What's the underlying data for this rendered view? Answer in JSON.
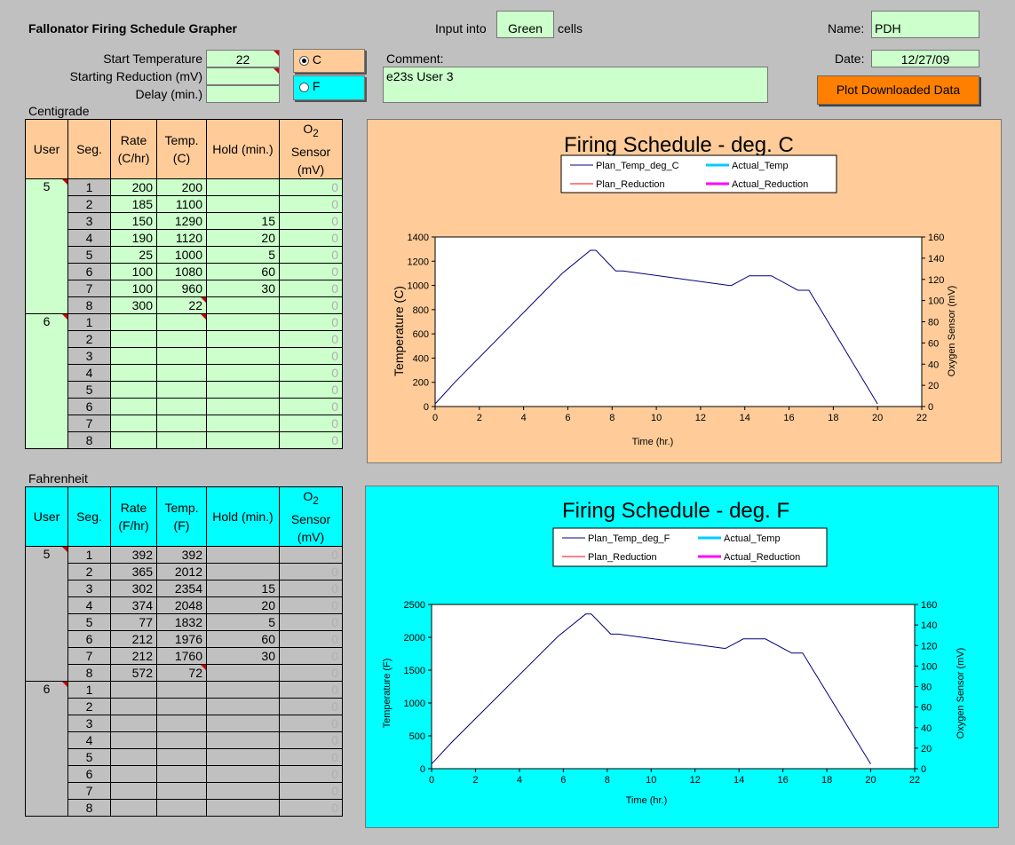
{
  "header": {
    "app_title": "Fallonator Firing Schedule Grapher",
    "input_into": "Input into",
    "green_word": "Green",
    "cells_word": "cells",
    "name_label": "Name:",
    "name_value": "PDH",
    "date_label": "Date:",
    "date_value": "12/27/09"
  },
  "inputs": {
    "start_temp_label": "Start Temperature",
    "start_temp_value": "22",
    "start_red_label": "Starting Reduction (mV)",
    "start_red_value": "",
    "delay_label": "Delay (min.)",
    "delay_value": "",
    "comment_label": "Comment:",
    "comment_value": "e23s User 3",
    "unit_c_label": "C",
    "unit_f_label": "F",
    "selected_unit": "C",
    "plot_button": "Plot Downloaded Data"
  },
  "centigrade": {
    "section_label": "Centigrade",
    "headers": {
      "user": "User",
      "seg": "Seg.",
      "rate": "Rate (C/hr)",
      "temp": "Temp. (C)",
      "hold": "Hold (min.)",
      "o2_main": "O",
      "o2_sub": "2",
      "o2_rest": "Sensor (mV)"
    },
    "groups": [
      {
        "user": "5",
        "rows": [
          {
            "seg": "1",
            "rate": "200",
            "temp": "200",
            "hold": "",
            "o2": "0"
          },
          {
            "seg": "2",
            "rate": "185",
            "temp": "1100",
            "hold": "",
            "o2": "0"
          },
          {
            "seg": "3",
            "rate": "150",
            "temp": "1290",
            "hold": "15",
            "o2": "0"
          },
          {
            "seg": "4",
            "rate": "190",
            "temp": "1120",
            "hold": "20",
            "o2": "0"
          },
          {
            "seg": "5",
            "rate": "25",
            "temp": "1000",
            "hold": "5",
            "o2": "0"
          },
          {
            "seg": "6",
            "rate": "100",
            "temp": "1080",
            "hold": "60",
            "o2": "0"
          },
          {
            "seg": "7",
            "rate": "100",
            "temp": "960",
            "hold": "30",
            "o2": "0"
          },
          {
            "seg": "8",
            "rate": "300",
            "temp": "22",
            "hold": "",
            "o2": "0"
          }
        ]
      },
      {
        "user": "6",
        "rows": [
          {
            "seg": "1",
            "rate": "",
            "temp": "",
            "hold": "",
            "o2": "0"
          },
          {
            "seg": "2",
            "rate": "",
            "temp": "",
            "hold": "",
            "o2": "0"
          },
          {
            "seg": "3",
            "rate": "",
            "temp": "",
            "hold": "",
            "o2": "0"
          },
          {
            "seg": "4",
            "rate": "",
            "temp": "",
            "hold": "",
            "o2": "0"
          },
          {
            "seg": "5",
            "rate": "",
            "temp": "",
            "hold": "",
            "o2": "0"
          },
          {
            "seg": "6",
            "rate": "",
            "temp": "",
            "hold": "",
            "o2": "0"
          },
          {
            "seg": "7",
            "rate": "",
            "temp": "",
            "hold": "",
            "o2": "0"
          },
          {
            "seg": "8",
            "rate": "",
            "temp": "",
            "hold": "",
            "o2": "0"
          }
        ]
      }
    ]
  },
  "fahrenheit": {
    "section_label": "Fahrenheit",
    "headers": {
      "user": "User",
      "seg": "Seg.",
      "rate": "Rate (F/hr)",
      "temp": "Temp. (F)",
      "hold": "Hold (min.)",
      "o2_main": "O",
      "o2_sub": "2",
      "o2_rest": "Sensor (mV)"
    },
    "groups": [
      {
        "user": "5",
        "rows": [
          {
            "seg": "1",
            "rate": "392",
            "temp": "392",
            "hold": "",
            "o2": "0"
          },
          {
            "seg": "2",
            "rate": "365",
            "temp": "2012",
            "hold": "",
            "o2": "0"
          },
          {
            "seg": "3",
            "rate": "302",
            "temp": "2354",
            "hold": "15",
            "o2": "0"
          },
          {
            "seg": "4",
            "rate": "374",
            "temp": "2048",
            "hold": "20",
            "o2": "0"
          },
          {
            "seg": "5",
            "rate": "77",
            "temp": "1832",
            "hold": "5",
            "o2": "0"
          },
          {
            "seg": "6",
            "rate": "212",
            "temp": "1976",
            "hold": "60",
            "o2": "0"
          },
          {
            "seg": "7",
            "rate": "212",
            "temp": "1760",
            "hold": "30",
            "o2": "0"
          },
          {
            "seg": "8",
            "rate": "572",
            "temp": "72",
            "hold": "",
            "o2": "0"
          }
        ]
      },
      {
        "user": "6",
        "rows": [
          {
            "seg": "1",
            "rate": "",
            "temp": "",
            "hold": "",
            "o2": "0"
          },
          {
            "seg": "2",
            "rate": "",
            "temp": "",
            "hold": "",
            "o2": "0"
          },
          {
            "seg": "3",
            "rate": "",
            "temp": "",
            "hold": "",
            "o2": "0"
          },
          {
            "seg": "4",
            "rate": "",
            "temp": "",
            "hold": "",
            "o2": "0"
          },
          {
            "seg": "5",
            "rate": "",
            "temp": "",
            "hold": "",
            "o2": "0"
          },
          {
            "seg": "6",
            "rate": "",
            "temp": "",
            "hold": "",
            "o2": "0"
          },
          {
            "seg": "7",
            "rate": "",
            "temp": "",
            "hold": "",
            "o2": "0"
          },
          {
            "seg": "8",
            "rate": "",
            "temp": "",
            "hold": "",
            "o2": "0"
          }
        ]
      }
    ]
  },
  "colors": {
    "background": "#c0c0c0",
    "input_green": "#ccffcc",
    "celsius_panel": "#ffcc99",
    "fahrenheit_panel": "#00ffff",
    "button_orange": "#ff8000",
    "plan_temp": "#000080",
    "actual_temp": "#00ccff",
    "plan_reduction": "#ff0000",
    "actual_reduction": "#ff00ff"
  },
  "chart_data": [
    {
      "type": "line",
      "title": "Firing Schedule - deg. C",
      "xlabel": "Time (hr.)",
      "ylabel": "Temperature (C)",
      "y2label": "Oxygen Sensor (mV)",
      "xlim": [
        0,
        22
      ],
      "ylim": [
        0,
        1400
      ],
      "y2lim": [
        0,
        160
      ],
      "xticks": [
        "0",
        "2",
        "4",
        "6",
        "8",
        "10",
        "12",
        "14",
        "16",
        "18",
        "20",
        "22"
      ],
      "yticks": [
        "0",
        "200",
        "400",
        "600",
        "800",
        "1000",
        "1200",
        "1400"
      ],
      "y2ticks": [
        "0",
        "20",
        "40",
        "60",
        "80",
        "100",
        "120",
        "140",
        "160"
      ],
      "legend_position": "top",
      "legend": [
        "Plan_Temp_deg_C",
        "Actual_Temp",
        "Plan_Reduction",
        "Actual_Reduction"
      ],
      "series": [
        {
          "name": "Plan_Temp_deg_C",
          "axis": "left",
          "x": [
            0,
            0.89,
            5.75,
            7.02,
            7.27,
            8.16,
            8.5,
            13.3,
            13.4,
            14.2,
            15.2,
            16.4,
            16.9,
            20.0
          ],
          "y": [
            22,
            200,
            1100,
            1290,
            1290,
            1120,
            1120,
            1000,
            1000,
            1080,
            1080,
            960,
            960,
            22
          ]
        },
        {
          "name": "Actual_Temp",
          "axis": "left",
          "x": [],
          "y": []
        },
        {
          "name": "Plan_Reduction",
          "axis": "right",
          "x": [],
          "y": []
        },
        {
          "name": "Actual_Reduction",
          "axis": "right",
          "x": [],
          "y": []
        }
      ]
    },
    {
      "type": "line",
      "title": "Firing Schedule - deg. F",
      "xlabel": "Time (hr.)",
      "ylabel": "Temperature (F)",
      "y2label": "Oxygen Sensor (mV)",
      "xlim": [
        0,
        22
      ],
      "ylim": [
        0,
        2500
      ],
      "y2lim": [
        0,
        160
      ],
      "xticks": [
        "0",
        "2",
        "4",
        "6",
        "8",
        "10",
        "12",
        "14",
        "16",
        "18",
        "20",
        "22"
      ],
      "yticks": [
        "0",
        "500",
        "1000",
        "1500",
        "2000",
        "2500"
      ],
      "y2ticks": [
        "0",
        "20",
        "40",
        "60",
        "80",
        "100",
        "120",
        "140",
        "160"
      ],
      "legend_position": "top",
      "legend": [
        "Plan_Temp_deg_F",
        "Actual_Temp",
        "Plan_Reduction",
        "Actual_Reduction"
      ],
      "series": [
        {
          "name": "Plan_Temp_deg_F",
          "axis": "left",
          "x": [
            0,
            0.89,
            5.75,
            7.02,
            7.27,
            8.16,
            8.5,
            13.3,
            13.4,
            14.2,
            15.2,
            16.4,
            16.9,
            20.0
          ],
          "y": [
            72,
            392,
            2012,
            2354,
            2354,
            2048,
            2048,
            1832,
            1832,
            1976,
            1976,
            1760,
            1760,
            72
          ]
        },
        {
          "name": "Actual_Temp",
          "axis": "left",
          "x": [],
          "y": []
        },
        {
          "name": "Plan_Reduction",
          "axis": "right",
          "x": [],
          "y": []
        },
        {
          "name": "Actual_Reduction",
          "axis": "right",
          "x": [],
          "y": []
        }
      ]
    }
  ]
}
